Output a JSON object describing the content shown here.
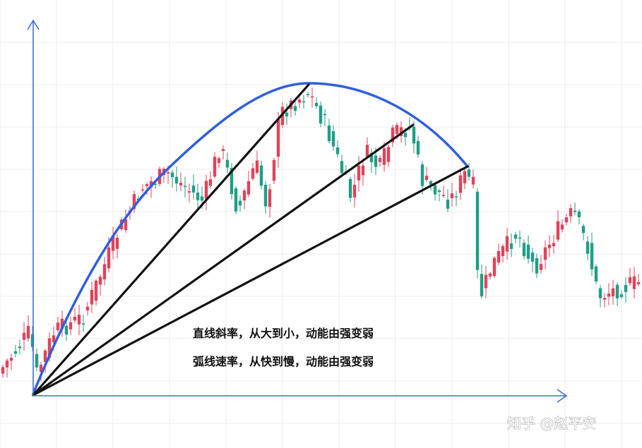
{
  "chart_data": {
    "type": "candlestick",
    "title": "",
    "xlabel": "",
    "ylabel": "",
    "grid": true,
    "colors": {
      "up": "#e0435a",
      "down": "#1f9e86",
      "arc": "#2f5fe0",
      "lines": "#111111",
      "axis": "#3a6ee0",
      "grid": "#ececec"
    },
    "annotations": [
      {
        "name": "annotation-straight-lines",
        "text": "直线斜率，从大到小，动能由强变弱"
      },
      {
        "name": "annotation-arc",
        "text": "弧线速率，从快到慢，动能由强变弱"
      }
    ],
    "trendlines": [
      "slope-line-1",
      "slope-line-2",
      "slope-line-3"
    ],
    "arc": "momentum-arc"
  },
  "watermark": "知乎 @赵平安"
}
